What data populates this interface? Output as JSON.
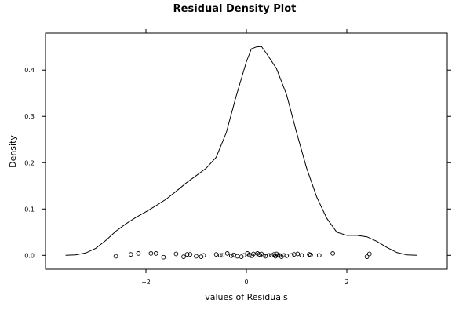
{
  "chart_data": {
    "type": "line",
    "title": "Residual Density Plot",
    "xlabel": "values of Residuals",
    "ylabel": "Density",
    "xlim": [
      -4.0,
      4.0
    ],
    "ylim": [
      -0.03,
      0.48
    ],
    "x_ticks": [
      -2,
      0,
      2
    ],
    "x_tick_labels": [
      "−2",
      "0",
      "2"
    ],
    "y_ticks": [
      0.0,
      0.1,
      0.2,
      0.3,
      0.4
    ],
    "y_tick_labels": [
      "0.0",
      "0.1",
      "0.2",
      "0.3",
      "0.4"
    ],
    "grid": false,
    "series": [
      {
        "kind": "density-line",
        "color": "#000000",
        "x": [
          -3.6,
          -3.4,
          -3.2,
          -3.0,
          -2.8,
          -2.6,
          -2.4,
          -2.2,
          -2.0,
          -1.8,
          -1.6,
          -1.4,
          -1.2,
          -1.0,
          -0.8,
          -0.6,
          -0.4,
          -0.2,
          0.0,
          0.1,
          0.2,
          0.3,
          0.4,
          0.6,
          0.8,
          1.0,
          1.2,
          1.4,
          1.6,
          1.8,
          2.0,
          2.2,
          2.4,
          2.6,
          2.8,
          3.0,
          3.2,
          3.4
        ],
        "y": [
          0.0,
          0.001,
          0.005,
          0.015,
          0.032,
          0.052,
          0.068,
          0.082,
          0.094,
          0.107,
          0.121,
          0.138,
          0.156,
          0.172,
          0.188,
          0.212,
          0.265,
          0.345,
          0.418,
          0.446,
          0.45,
          0.451,
          0.436,
          0.403,
          0.347,
          0.265,
          0.188,
          0.126,
          0.08,
          0.05,
          0.043,
          0.043,
          0.04,
          0.03,
          0.017,
          0.006,
          0.001,
          0.0
        ]
      },
      {
        "kind": "rug-points",
        "color": "#000000",
        "x": [
          -2.6,
          -2.3,
          -2.15,
          -1.9,
          -1.8,
          -1.65,
          -1.4,
          -1.25,
          -1.18,
          -1.12,
          -1.0,
          -0.9,
          -0.85,
          -0.6,
          -0.52,
          -0.48,
          -0.38,
          -0.3,
          -0.25,
          -0.18,
          -0.1,
          -0.05,
          0.02,
          0.06,
          0.1,
          0.14,
          0.18,
          0.22,
          0.26,
          0.3,
          0.34,
          0.38,
          0.45,
          0.5,
          0.55,
          0.58,
          0.6,
          0.63,
          0.66,
          0.7,
          0.75,
          0.8,
          0.9,
          0.95,
          1.02,
          1.1,
          1.25,
          1.28,
          1.45,
          1.72,
          2.4,
          2.45
        ],
        "y": [
          -0.002,
          0.002,
          0.004,
          0.004,
          0.004,
          -0.004,
          0.003,
          -0.003,
          0.002,
          0.002,
          -0.002,
          -0.003,
          0.0,
          0.002,
          0.0,
          0.0,
          0.004,
          -0.001,
          0.001,
          -0.002,
          -0.003,
          0.0,
          0.004,
          0.001,
          -0.001,
          0.003,
          0.0,
          0.004,
          0.002,
          0.003,
          0.0,
          -0.002,
          0.0,
          0.0,
          0.002,
          -0.002,
          0.003,
          0.0,
          0.0,
          -0.003,
          0.0,
          -0.001,
          0.0,
          0.002,
          0.003,
          0.0,
          0.002,
          0.001,
          0.0,
          0.004,
          -0.003,
          0.003
        ]
      }
    ]
  }
}
